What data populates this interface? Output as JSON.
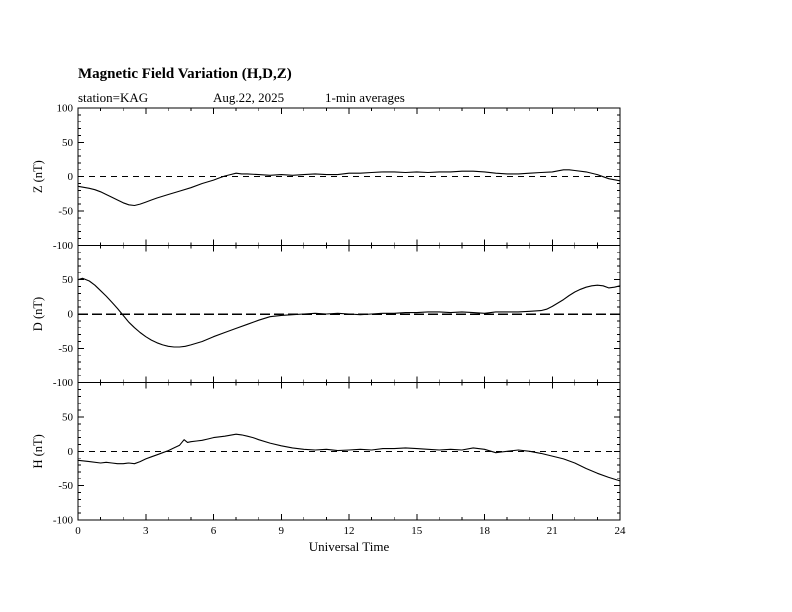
{
  "title": "Magnetic Field Variation (H,D,Z)",
  "subtitle": {
    "station": "station=KAG",
    "date": "Aug.22, 2025",
    "averaging": "1-min averages"
  },
  "xlabel": "Universal Time",
  "ink_color": "#000000",
  "background_color": "#ffffff",
  "chart_data": [
    {
      "type": "line",
      "panel": "Z",
      "ylabel": "Z (nT)",
      "ylim": [
        -100,
        100
      ],
      "yticks": [
        100,
        50,
        0,
        -50,
        -100
      ],
      "ytick_labels": [
        "100",
        "50",
        "0",
        "-50",
        "-100"
      ],
      "xlim": [
        0,
        24
      ],
      "xticks": [
        0,
        3,
        6,
        9,
        12,
        15,
        18,
        21,
        24
      ],
      "zero_line": 0,
      "points": [
        [
          0,
          -14
        ],
        [
          0.5,
          -17
        ],
        [
          0.75,
          -19
        ],
        [
          1,
          -22
        ],
        [
          1.25,
          -26
        ],
        [
          1.5,
          -30
        ],
        [
          1.75,
          -34
        ],
        [
          2,
          -38
        ],
        [
          2.25,
          -41
        ],
        [
          2.5,
          -42
        ],
        [
          2.75,
          -40
        ],
        [
          3,
          -37
        ],
        [
          3.25,
          -34
        ],
        [
          3.5,
          -31
        ],
        [
          4,
          -26
        ],
        [
          4.5,
          -21
        ],
        [
          5,
          -16
        ],
        [
          5.5,
          -10
        ],
        [
          6,
          -5
        ],
        [
          6.25,
          -2
        ],
        [
          6.5,
          1
        ],
        [
          6.75,
          3
        ],
        [
          7,
          5
        ],
        [
          7.25,
          4
        ],
        [
          7.5,
          4
        ],
        [
          8,
          3
        ],
        [
          8.5,
          2
        ],
        [
          9,
          3
        ],
        [
          9.5,
          2
        ],
        [
          10,
          3
        ],
        [
          10.5,
          4
        ],
        [
          11,
          3
        ],
        [
          11.5,
          3
        ],
        [
          12,
          5
        ],
        [
          12.5,
          5
        ],
        [
          13,
          6
        ],
        [
          13.5,
          7
        ],
        [
          14,
          7
        ],
        [
          14.5,
          6
        ],
        [
          15,
          7
        ],
        [
          15.5,
          6
        ],
        [
          16,
          7
        ],
        [
          16.5,
          7
        ],
        [
          17,
          8
        ],
        [
          17.5,
          8
        ],
        [
          18,
          7
        ],
        [
          18.5,
          5
        ],
        [
          19,
          4
        ],
        [
          19.5,
          4
        ],
        [
          20,
          5
        ],
        [
          20.5,
          6
        ],
        [
          21,
          7
        ],
        [
          21.5,
          10
        ],
        [
          21.75,
          10
        ],
        [
          22,
          9
        ],
        [
          22.5,
          7
        ],
        [
          23,
          3
        ],
        [
          23.25,
          0
        ],
        [
          23.5,
          -3
        ],
        [
          24,
          -6
        ]
      ]
    },
    {
      "type": "line",
      "panel": "D",
      "ylabel": "D (nT)",
      "ylim": [
        -100,
        100
      ],
      "yticks": [
        100,
        50,
        0,
        -50,
        -100
      ],
      "ytick_labels": [
        "50",
        "0",
        "-50",
        "-100"
      ],
      "xlim": [
        0,
        24
      ],
      "xticks": [
        0,
        3,
        6,
        9,
        12,
        15,
        18,
        21,
        24
      ],
      "zero_line": 0,
      "points": [
        [
          0,
          50
        ],
        [
          0.2,
          52
        ],
        [
          0.5,
          48
        ],
        [
          0.75,
          42
        ],
        [
          1,
          34
        ],
        [
          1.25,
          26
        ],
        [
          1.5,
          17
        ],
        [
          1.75,
          8
        ],
        [
          2,
          -2
        ],
        [
          2.25,
          -12
        ],
        [
          2.5,
          -20
        ],
        [
          2.75,
          -27
        ],
        [
          3,
          -33
        ],
        [
          3.25,
          -38
        ],
        [
          3.5,
          -42
        ],
        [
          3.75,
          -45
        ],
        [
          4,
          -47
        ],
        [
          4.25,
          -48
        ],
        [
          4.5,
          -48
        ],
        [
          4.75,
          -47
        ],
        [
          5,
          -45
        ],
        [
          5.5,
          -40
        ],
        [
          6,
          -33
        ],
        [
          6.5,
          -27
        ],
        [
          7,
          -21
        ],
        [
          7.5,
          -15
        ],
        [
          8,
          -9
        ],
        [
          8.5,
          -4
        ],
        [
          9,
          -2
        ],
        [
          9.5,
          -1
        ],
        [
          10,
          0
        ],
        [
          10.5,
          1
        ],
        [
          11,
          0
        ],
        [
          11.5,
          1
        ],
        [
          12,
          0
        ],
        [
          12.5,
          -1
        ],
        [
          13,
          0
        ],
        [
          13.5,
          1
        ],
        [
          14,
          1
        ],
        [
          14.5,
          2
        ],
        [
          15,
          2
        ],
        [
          15.5,
          3
        ],
        [
          16,
          3
        ],
        [
          16.5,
          2
        ],
        [
          17,
          3
        ],
        [
          17.5,
          2
        ],
        [
          18,
          1
        ],
        [
          18.5,
          3
        ],
        [
          19,
          3
        ],
        [
          19.5,
          3
        ],
        [
          20,
          4
        ],
        [
          20.5,
          5
        ],
        [
          20.75,
          7
        ],
        [
          21,
          11
        ],
        [
          21.25,
          16
        ],
        [
          21.5,
          21
        ],
        [
          21.75,
          27
        ],
        [
          22,
          32
        ],
        [
          22.25,
          36
        ],
        [
          22.5,
          39
        ],
        [
          22.75,
          41
        ],
        [
          23,
          42
        ],
        [
          23.25,
          41
        ],
        [
          23.5,
          38
        ],
        [
          23.75,
          39
        ],
        [
          24,
          41
        ]
      ]
    },
    {
      "type": "line",
      "panel": "H",
      "ylabel": "H (nT)",
      "ylim": [
        -100,
        100
      ],
      "yticks": [
        100,
        50,
        0,
        -50,
        -100
      ],
      "ytick_labels": [
        "50",
        "0",
        "-50",
        "-100"
      ],
      "xlim": [
        0,
        24
      ],
      "xticks": [
        0,
        3,
        6,
        9,
        12,
        15,
        18,
        21,
        24
      ],
      "zero_line": 0,
      "points": [
        [
          0,
          -13
        ],
        [
          0.5,
          -15
        ],
        [
          1,
          -17
        ],
        [
          1.25,
          -16
        ],
        [
          1.5,
          -17
        ],
        [
          1.75,
          -18
        ],
        [
          2,
          -18
        ],
        [
          2.25,
          -17
        ],
        [
          2.5,
          -18
        ],
        [
          2.75,
          -15
        ],
        [
          3,
          -11
        ],
        [
          3.25,
          -8
        ],
        [
          3.5,
          -5
        ],
        [
          3.75,
          -2
        ],
        [
          4,
          1
        ],
        [
          4.25,
          5
        ],
        [
          4.5,
          9
        ],
        [
          4.7,
          17
        ],
        [
          4.85,
          13
        ],
        [
          5,
          14
        ],
        [
          5.25,
          15
        ],
        [
          5.5,
          16
        ],
        [
          5.75,
          18
        ],
        [
          6,
          20
        ],
        [
          6.5,
          22
        ],
        [
          7,
          25
        ],
        [
          7.25,
          24
        ],
        [
          7.5,
          22
        ],
        [
          7.75,
          20
        ],
        [
          8,
          17
        ],
        [
          8.5,
          12
        ],
        [
          9,
          8
        ],
        [
          9.5,
          5
        ],
        [
          10,
          3
        ],
        [
          10.5,
          2
        ],
        [
          11,
          3
        ],
        [
          11.5,
          1
        ],
        [
          12,
          2
        ],
        [
          12.5,
          3
        ],
        [
          13,
          2
        ],
        [
          13.5,
          4
        ],
        [
          14,
          4
        ],
        [
          14.5,
          5
        ],
        [
          15,
          4
        ],
        [
          15.5,
          3
        ],
        [
          16,
          2
        ],
        [
          16.5,
          3
        ],
        [
          17,
          2
        ],
        [
          17.5,
          5
        ],
        [
          18,
          3
        ],
        [
          18.5,
          -2
        ],
        [
          18.75,
          -1
        ],
        [
          19,
          0
        ],
        [
          19.5,
          2
        ],
        [
          20,
          0
        ],
        [
          20.5,
          -3
        ],
        [
          21,
          -7
        ],
        [
          21.5,
          -11
        ],
        [
          22,
          -17
        ],
        [
          22.5,
          -25
        ],
        [
          23,
          -32
        ],
        [
          23.5,
          -38
        ],
        [
          24,
          -43
        ]
      ]
    }
  ]
}
